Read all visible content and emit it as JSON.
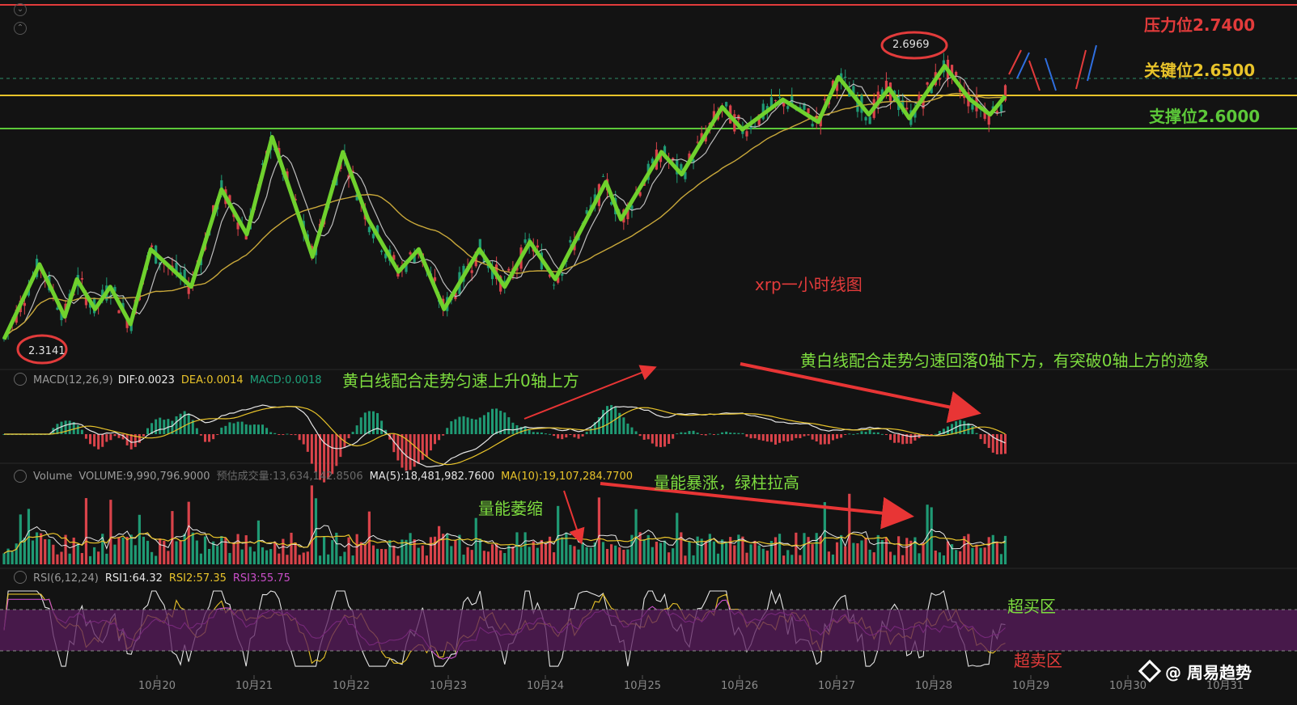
{
  "chart_title": "xrp一小时线图",
  "levels": {
    "resistance": {
      "label": "压力位2.7400",
      "value": 2.74,
      "color": "#e23b3b"
    },
    "key": {
      "label": "关键位2.6500",
      "value": 2.65,
      "color": "#e8c32a"
    },
    "support": {
      "label": "支撑位2.6000",
      "value": 2.6,
      "color": "#5cc839"
    }
  },
  "price_annotations": {
    "high": "2.6969",
    "low": "2.3141"
  },
  "macd": {
    "name": "MACD(12,26,9)",
    "dif": "DIF:0.0023",
    "dea": "DEA:0.0014",
    "macd": "MACD:0.0018"
  },
  "volume": {
    "name": "Volume",
    "volume": "VOLUME:9,990,796.9000",
    "estimate": "预估成交量:13,634,142.8506",
    "ma5": "MA(5):18,481,982.7600",
    "ma10": "MA(10):19,107,284.7700"
  },
  "rsi": {
    "name": "RSI(6,12,24)",
    "rsi1": "RSI1:64.32",
    "rsi2": "RSI2:57.35",
    "rsi3": "RSI3:55.75"
  },
  "annotations": {
    "macd_left": "黄白线配合走势匀速上升0轴上方",
    "macd_right": "黄白线配合走势匀速回落0轴下方，有突破0轴上方的迹象",
    "vol_shrink": "量能萎缩",
    "vol_surge": "量能暴涨，绿柱拉高",
    "overbought": "超买区",
    "oversold": "超卖区"
  },
  "dates": [
    "10月20",
    "10月21",
    "10月22",
    "10月23",
    "10月24",
    "10月25",
    "10月26",
    "10月27",
    "10月28",
    "10月29",
    "10月30",
    "10月31"
  ],
  "watermark": "@ 周易趋势",
  "chart_data": {
    "type": "line",
    "title": "xrp一小时线图",
    "x": [
      "10月20",
      "10月21",
      "10月22",
      "10月23",
      "10月24",
      "10月25",
      "10月26",
      "10月27",
      "10月28",
      "10月29",
      "10月30",
      "10月31"
    ],
    "price_zigzag": [
      {
        "x": 0.0,
        "y": 2.32
      },
      {
        "x": 0.35,
        "y": 2.42
      },
      {
        "x": 0.6,
        "y": 2.35
      },
      {
        "x": 0.72,
        "y": 2.4
      },
      {
        "x": 0.9,
        "y": 2.36
      },
      {
        "x": 1.05,
        "y": 2.39
      },
      {
        "x": 1.25,
        "y": 2.34
      },
      {
        "x": 1.45,
        "y": 2.44
      },
      {
        "x": 1.85,
        "y": 2.39
      },
      {
        "x": 2.15,
        "y": 2.52
      },
      {
        "x": 2.4,
        "y": 2.46
      },
      {
        "x": 2.65,
        "y": 2.59
      },
      {
        "x": 3.05,
        "y": 2.43
      },
      {
        "x": 3.35,
        "y": 2.57
      },
      {
        "x": 3.6,
        "y": 2.48
      },
      {
        "x": 3.9,
        "y": 2.41
      },
      {
        "x": 4.1,
        "y": 2.44
      },
      {
        "x": 4.35,
        "y": 2.36
      },
      {
        "x": 4.7,
        "y": 2.44
      },
      {
        "x": 4.95,
        "y": 2.39
      },
      {
        "x": 5.2,
        "y": 2.45
      },
      {
        "x": 5.45,
        "y": 2.4
      },
      {
        "x": 5.95,
        "y": 2.53
      },
      {
        "x": 6.1,
        "y": 2.48
      },
      {
        "x": 6.5,
        "y": 2.57
      },
      {
        "x": 6.7,
        "y": 2.54
      },
      {
        "x": 7.1,
        "y": 2.63
      },
      {
        "x": 7.3,
        "y": 2.6
      },
      {
        "x": 7.7,
        "y": 2.64
      },
      {
        "x": 8.05,
        "y": 2.61
      },
      {
        "x": 8.25,
        "y": 2.67
      },
      {
        "x": 8.55,
        "y": 2.62
      },
      {
        "x": 8.75,
        "y": 2.655
      },
      {
        "x": 8.95,
        "y": 2.615
      },
      {
        "x": 9.3,
        "y": 2.685
      },
      {
        "x": 9.55,
        "y": 2.64
      },
      {
        "x": 9.75,
        "y": 2.62
      },
      {
        "x": 9.9,
        "y": 2.645
      }
    ],
    "high": 2.6969,
    "low": 2.3141,
    "ylim": [
      2.3,
      2.76
    ],
    "hlines": [
      2.74,
      2.65,
      2.6
    ],
    "rsi_bands": [
      70,
      30
    ]
  }
}
